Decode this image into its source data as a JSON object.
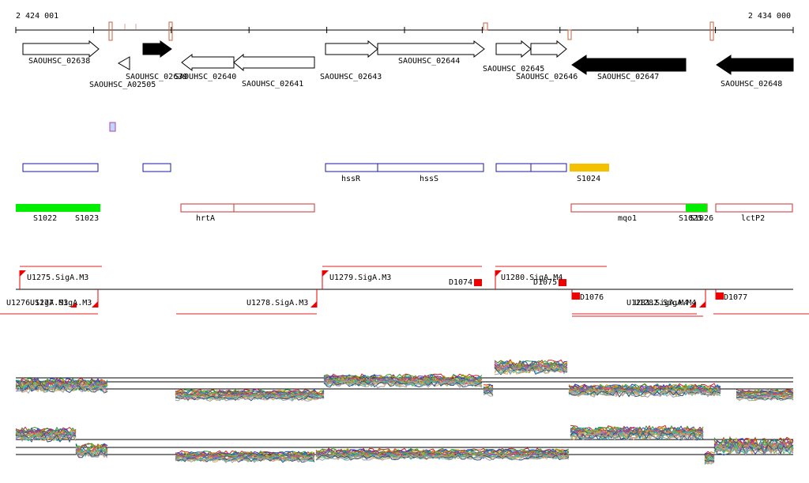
{
  "coordinates": {
    "start_label": "2 424 001",
    "end_label": "2 434 000"
  },
  "colors": {
    "gene_outline": "#000000",
    "gene_filled": "#000000",
    "feature_blue": "#1a1aa8",
    "feature_red": "#c83232",
    "feature_green": "#00ee00",
    "feature_orange": "#f5c000",
    "tss_red": "#ee0000",
    "marker_red": "#c86040"
  },
  "genes": [
    {
      "name": "SAOUHSC_02638"
    },
    {
      "name": "SAOUHSC_A02505"
    },
    {
      "name": "SAOUHSC_02639"
    },
    {
      "name": "SAOUHSC_02640"
    },
    {
      "name": "SAOUHSC_02641"
    },
    {
      "name": "SAOUHSC_02643"
    },
    {
      "name": "SAOUHSC_02644"
    },
    {
      "name": "SAOUHSC_02645"
    },
    {
      "name": "SAOUHSC_02646"
    },
    {
      "name": "SAOUHSC_02647"
    },
    {
      "name": "SAOUHSC_02648"
    }
  ],
  "features": {
    "hssR": "hssR",
    "hssS": "hssS",
    "S1024": "S1024",
    "S1022": "S1022",
    "S1023": "S1023",
    "hrtA": "hrtA",
    "mqo1": "mqo1",
    "S1025": "S1025",
    "S1026": "S1026",
    "lctP2": "lctP2"
  },
  "transcripts": {
    "U1275": "U1275.SigA.M3",
    "U1276": "U1276.SigA.M3",
    "U1277": "U1277.SigA.M3",
    "U1278": "U1278.SigA.M3",
    "U1279": "U1279.SigA.M3",
    "D1074": "D1074",
    "U1280": "U1280.SigA.M4",
    "D1075": "D1075",
    "D1076": "D1076",
    "U1281": "U1281.SigA.M4",
    "U1282": "U1282.SigA.M4",
    "D1077": "D1077"
  }
}
